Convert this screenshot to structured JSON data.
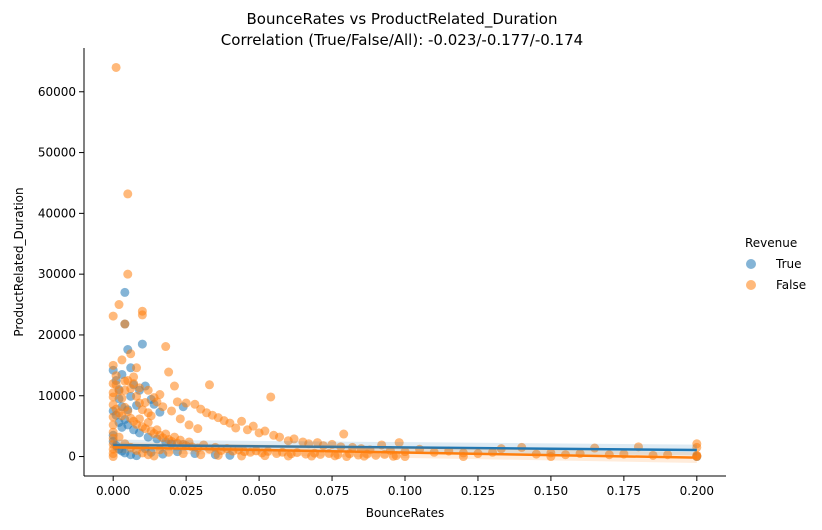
{
  "chart_data": {
    "type": "scatter",
    "title": "BounceRates vs ProductRelated_Duration",
    "subtitle": "Correlation (True/False/All): -0.023/-0.177/-0.174",
    "xlabel": "BounceRates",
    "ylabel": "ProductRelated_Duration",
    "xlim": [
      -0.01,
      0.21
    ],
    "ylim": [
      -3200,
      67200
    ],
    "xticks": [
      0.0,
      0.025,
      0.05,
      0.075,
      0.1,
      0.125,
      0.15,
      0.175,
      0.2
    ],
    "xtick_labels": [
      "0.000",
      "0.025",
      "0.050",
      "0.075",
      "0.100",
      "0.125",
      "0.150",
      "0.175",
      "0.200"
    ],
    "yticks": [
      0,
      10000,
      20000,
      30000,
      40000,
      50000,
      60000
    ],
    "ytick_labels": [
      "0",
      "10000",
      "20000",
      "30000",
      "40000",
      "50000",
      "60000"
    ],
    "legend": {
      "title": "Revenue",
      "placement": "right"
    },
    "series": [
      {
        "name": "True",
        "color": "#1f77b4",
        "regression": {
          "x": [
            0.0,
            0.2
          ],
          "y": [
            1900,
            1080
          ]
        },
        "points": [
          [
            0.0,
            14200
          ],
          [
            0.001,
            12500
          ],
          [
            0.002,
            11000
          ],
          [
            0.003,
            13500
          ],
          [
            0.004,
            27000
          ],
          [
            0.004,
            21800
          ],
          [
            0.005,
            17600
          ],
          [
            0.006,
            14600
          ],
          [
            0.007,
            11800
          ],
          [
            0.009,
            10900
          ],
          [
            0.01,
            18500
          ],
          [
            0.011,
            11600
          ],
          [
            0.013,
            9400
          ],
          [
            0.014,
            8600
          ],
          [
            0.016,
            7300
          ],
          [
            0.024,
            8200
          ],
          [
            0.002,
            9500
          ],
          [
            0.003,
            8200
          ],
          [
            0.005,
            7700
          ],
          [
            0.006,
            9900
          ],
          [
            0.008,
            8400
          ],
          [
            0.0,
            7500
          ],
          [
            0.001,
            6800
          ],
          [
            0.002,
            5600
          ],
          [
            0.003,
            4800
          ],
          [
            0.004,
            6100
          ],
          [
            0.005,
            5200
          ],
          [
            0.007,
            4400
          ],
          [
            0.009,
            3900
          ],
          [
            0.012,
            3200
          ],
          [
            0.015,
            2900
          ],
          [
            0.018,
            2400
          ],
          [
            0.02,
            2100
          ],
          [
            0.0,
            3500
          ],
          [
            0.0,
            2500
          ],
          [
            0.001,
            1800
          ],
          [
            0.002,
            1200
          ],
          [
            0.003,
            900
          ],
          [
            0.004,
            600
          ],
          [
            0.006,
            300
          ],
          [
            0.008,
            150
          ],
          [
            0.011,
            1300
          ],
          [
            0.013,
            700
          ],
          [
            0.017,
            400
          ],
          [
            0.022,
            800
          ],
          [
            0.028,
            500
          ],
          [
            0.035,
            300
          ],
          [
            0.04,
            200
          ],
          [
            0.2,
            0
          ]
        ]
      },
      {
        "name": "False",
        "color": "#ff7f0e",
        "regression": {
          "x": [
            0.0,
            0.2
          ],
          "y": [
            1500,
            -180
          ]
        },
        "points": [
          [
            0.001,
            64000
          ],
          [
            0.005,
            43200
          ],
          [
            0.005,
            30000
          ],
          [
            0.002,
            25000
          ],
          [
            0.0,
            23100
          ],
          [
            0.01,
            23900
          ],
          [
            0.01,
            23300
          ],
          [
            0.004,
            21800
          ],
          [
            0.018,
            18100
          ],
          [
            0.006,
            16900
          ],
          [
            0.003,
            15900
          ],
          [
            0.0,
            15000
          ],
          [
            0.008,
            14600
          ],
          [
            0.001,
            13300
          ],
          [
            0.004,
            12400
          ],
          [
            0.007,
            12000
          ],
          [
            0.009,
            11300
          ],
          [
            0.012,
            10900
          ],
          [
            0.019,
            13900
          ],
          [
            0.016,
            10200
          ],
          [
            0.021,
            11600
          ],
          [
            0.033,
            11800
          ],
          [
            0.054,
            9800
          ],
          [
            0.014,
            9700
          ],
          [
            0.022,
            9000
          ],
          [
            0.025,
            8800
          ],
          [
            0.028,
            8600
          ],
          [
            0.03,
            7800
          ],
          [
            0.032,
            7200
          ],
          [
            0.034,
            6800
          ],
          [
            0.036,
            6400
          ],
          [
            0.038,
            5900
          ],
          [
            0.04,
            5500
          ],
          [
            0.044,
            5800
          ],
          [
            0.042,
            4700
          ],
          [
            0.046,
            4400
          ],
          [
            0.048,
            5000
          ],
          [
            0.05,
            3900
          ],
          [
            0.052,
            4200
          ],
          [
            0.055,
            3500
          ],
          [
            0.057,
            3200
          ],
          [
            0.06,
            2600
          ],
          [
            0.062,
            2900
          ],
          [
            0.065,
            2400
          ],
          [
            0.067,
            2100
          ],
          [
            0.07,
            2300
          ],
          [
            0.072,
            1800
          ],
          [
            0.075,
            2000
          ],
          [
            0.078,
            1600
          ],
          [
            0.079,
            3700
          ],
          [
            0.082,
            1500
          ],
          [
            0.085,
            1300
          ],
          [
            0.088,
            1100
          ],
          [
            0.092,
            1900
          ],
          [
            0.095,
            1000
          ],
          [
            0.098,
            2300
          ],
          [
            0.1,
            800
          ],
          [
            0.105,
            1200
          ],
          [
            0.11,
            700
          ],
          [
            0.115,
            900
          ],
          [
            0.12,
            600
          ],
          [
            0.125,
            500
          ],
          [
            0.13,
            700
          ],
          [
            0.133,
            1300
          ],
          [
            0.14,
            1500
          ],
          [
            0.145,
            400
          ],
          [
            0.15,
            600
          ],
          [
            0.155,
            300
          ],
          [
            0.16,
            500
          ],
          [
            0.165,
            1400
          ],
          [
            0.17,
            300
          ],
          [
            0.175,
            400
          ],
          [
            0.18,
            1600
          ],
          [
            0.185,
            200
          ],
          [
            0.19,
            300
          ],
          [
            0.2,
            1500
          ],
          [
            0.2,
            2100
          ],
          [
            0.2,
            0
          ],
          [
            0.2,
            200
          ],
          [
            0.2,
            100
          ],
          [
            0.1,
            0
          ],
          [
            0.15,
            0
          ],
          [
            0.12,
            0
          ],
          [
            0.08,
            0
          ],
          [
            0.0,
            8500
          ],
          [
            0.001,
            7800
          ],
          [
            0.002,
            7200
          ],
          [
            0.003,
            6700
          ],
          [
            0.004,
            8100
          ],
          [
            0.005,
            7400
          ],
          [
            0.006,
            6300
          ],
          [
            0.007,
            5800
          ],
          [
            0.008,
            5300
          ],
          [
            0.009,
            6200
          ],
          [
            0.01,
            4900
          ],
          [
            0.011,
            4600
          ],
          [
            0.012,
            5600
          ],
          [
            0.013,
            4200
          ],
          [
            0.014,
            3800
          ],
          [
            0.015,
            4400
          ],
          [
            0.016,
            3500
          ],
          [
            0.017,
            3100
          ],
          [
            0.018,
            3700
          ],
          [
            0.019,
            2800
          ],
          [
            0.02,
            2500
          ],
          [
            0.021,
            3200
          ],
          [
            0.022,
            2200
          ],
          [
            0.023,
            2700
          ],
          [
            0.024,
            2000
          ],
          [
            0.025,
            1800
          ],
          [
            0.026,
            2400
          ],
          [
            0.027,
            1600
          ],
          [
            0.029,
            1400
          ],
          [
            0.031,
            1900
          ],
          [
            0.033,
            1200
          ],
          [
            0.035,
            1500
          ],
          [
            0.037,
            1000
          ],
          [
            0.039,
            1300
          ],
          [
            0.041,
            900
          ],
          [
            0.043,
            1100
          ],
          [
            0.045,
            800
          ],
          [
            0.047,
            700
          ],
          [
            0.049,
            950
          ],
          [
            0.051,
            600
          ],
          [
            0.053,
            850
          ],
          [
            0.056,
            500
          ],
          [
            0.058,
            700
          ],
          [
            0.061,
            450
          ],
          [
            0.063,
            650
          ],
          [
            0.066,
            400
          ],
          [
            0.069,
            550
          ],
          [
            0.071,
            350
          ],
          [
            0.074,
            500
          ],
          [
            0.077,
            300
          ],
          [
            0.081,
            450
          ],
          [
            0.084,
            250
          ],
          [
            0.087,
            400
          ],
          [
            0.09,
            200
          ],
          [
            0.093,
            350
          ],
          [
            0.097,
            150
          ],
          [
            0.0,
            12000
          ],
          [
            0.0,
            10500
          ],
          [
            0.0,
            9800
          ],
          [
            0.0,
            6500
          ],
          [
            0.0,
            5200
          ],
          [
            0.0,
            4000
          ],
          [
            0.0,
            3000
          ],
          [
            0.0,
            2000
          ],
          [
            0.0,
            1200
          ],
          [
            0.0,
            500
          ],
          [
            0.0,
            0
          ],
          [
            0.001,
            11800
          ],
          [
            0.002,
            10800
          ],
          [
            0.003,
            9600
          ],
          [
            0.004,
            10900
          ],
          [
            0.005,
            12500
          ],
          [
            0.006,
            11200
          ],
          [
            0.007,
            13100
          ],
          [
            0.008,
            9900
          ],
          [
            0.009,
            8800
          ],
          [
            0.01,
            7700
          ],
          [
            0.011,
            8900
          ],
          [
            0.012,
            7200
          ],
          [
            0.013,
            6700
          ],
          [
            0.015,
            9000
          ],
          [
            0.017,
            8200
          ],
          [
            0.02,
            7500
          ],
          [
            0.023,
            6200
          ],
          [
            0.026,
            5200
          ],
          [
            0.029,
            4600
          ],
          [
            0.002,
            3200
          ],
          [
            0.004,
            2100
          ],
          [
            0.006,
            1500
          ],
          [
            0.008,
            1000
          ],
          [
            0.01,
            600
          ],
          [
            0.012,
            300
          ],
          [
            0.014,
            100
          ],
          [
            0.016,
            1100
          ],
          [
            0.019,
            700
          ],
          [
            0.024,
            500
          ],
          [
            0.03,
            300
          ],
          [
            0.036,
            200
          ],
          [
            0.044,
            100
          ],
          [
            0.052,
            150
          ],
          [
            0.06,
            100
          ],
          [
            0.068,
            80
          ],
          [
            0.076,
            120
          ],
          [
            0.086,
            60
          ],
          [
            0.096,
            40
          ]
        ]
      }
    ]
  }
}
